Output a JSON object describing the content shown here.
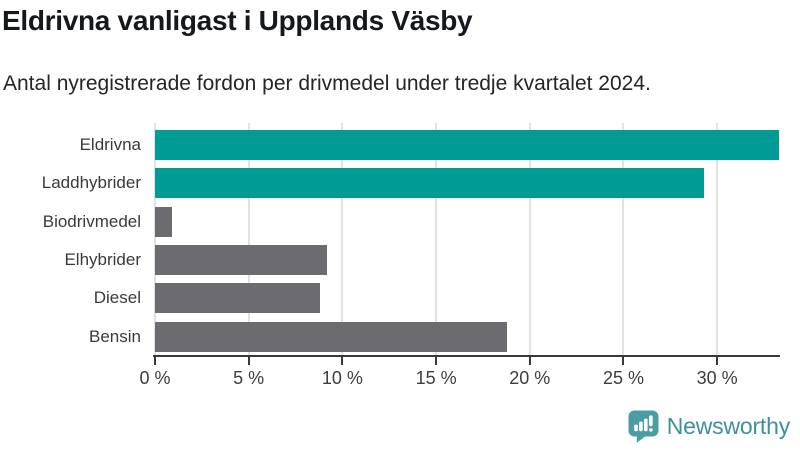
{
  "title": "Eldrivna vanligast i Upplands Väsby",
  "subtitle": "Antal nyregistrerade fordon per drivmedel under tredje kvartalet 2024.",
  "chart_data": {
    "type": "bar",
    "orientation": "horizontal",
    "title": "Eldrivna vanligast i Upplands Väsby",
    "subtitle": "Antal nyregistrerade fordon per drivmedel under tredje kvartalet 2024.",
    "categories": [
      "Eldrivna",
      "Laddhybrider",
      "Biodrivmedel",
      "Elhybrider",
      "Diesel",
      "Bensin"
    ],
    "values": [
      33.3,
      29.3,
      0.9,
      9.2,
      8.8,
      18.8
    ],
    "unit": "%",
    "xlim": [
      0,
      33.3
    ],
    "x_ticks": [
      0,
      5,
      10,
      15,
      20,
      25,
      30
    ],
    "x_tick_labels": [
      "0 %",
      "5 %",
      "10 %",
      "15 %",
      "20 %",
      "25 %",
      "30 %"
    ],
    "bar_colors": [
      "#009b94",
      "#009b94",
      "#6c6c70",
      "#6c6c70",
      "#6c6c70",
      "#6c6c70"
    ],
    "grid": true,
    "legend": "none",
    "xlabel": "",
    "ylabel": ""
  },
  "colors": {
    "highlight": "#009b94",
    "neutral": "#6c6c70",
    "grid": "#e2e2e2",
    "axis": "#3a3a3a",
    "tick_label": "#3d3d3d",
    "category_label": "#3a3a3a",
    "title_text": "#15181c",
    "subtitle_text": "#252525"
  },
  "branding": {
    "logo_text": "Newsworthy",
    "logo_icon": "bar-chart-speech-bubble-icon",
    "icon_color": "#4a9da3",
    "icon_glyph_color": "#ffffff",
    "text_color": "#3e919a"
  }
}
